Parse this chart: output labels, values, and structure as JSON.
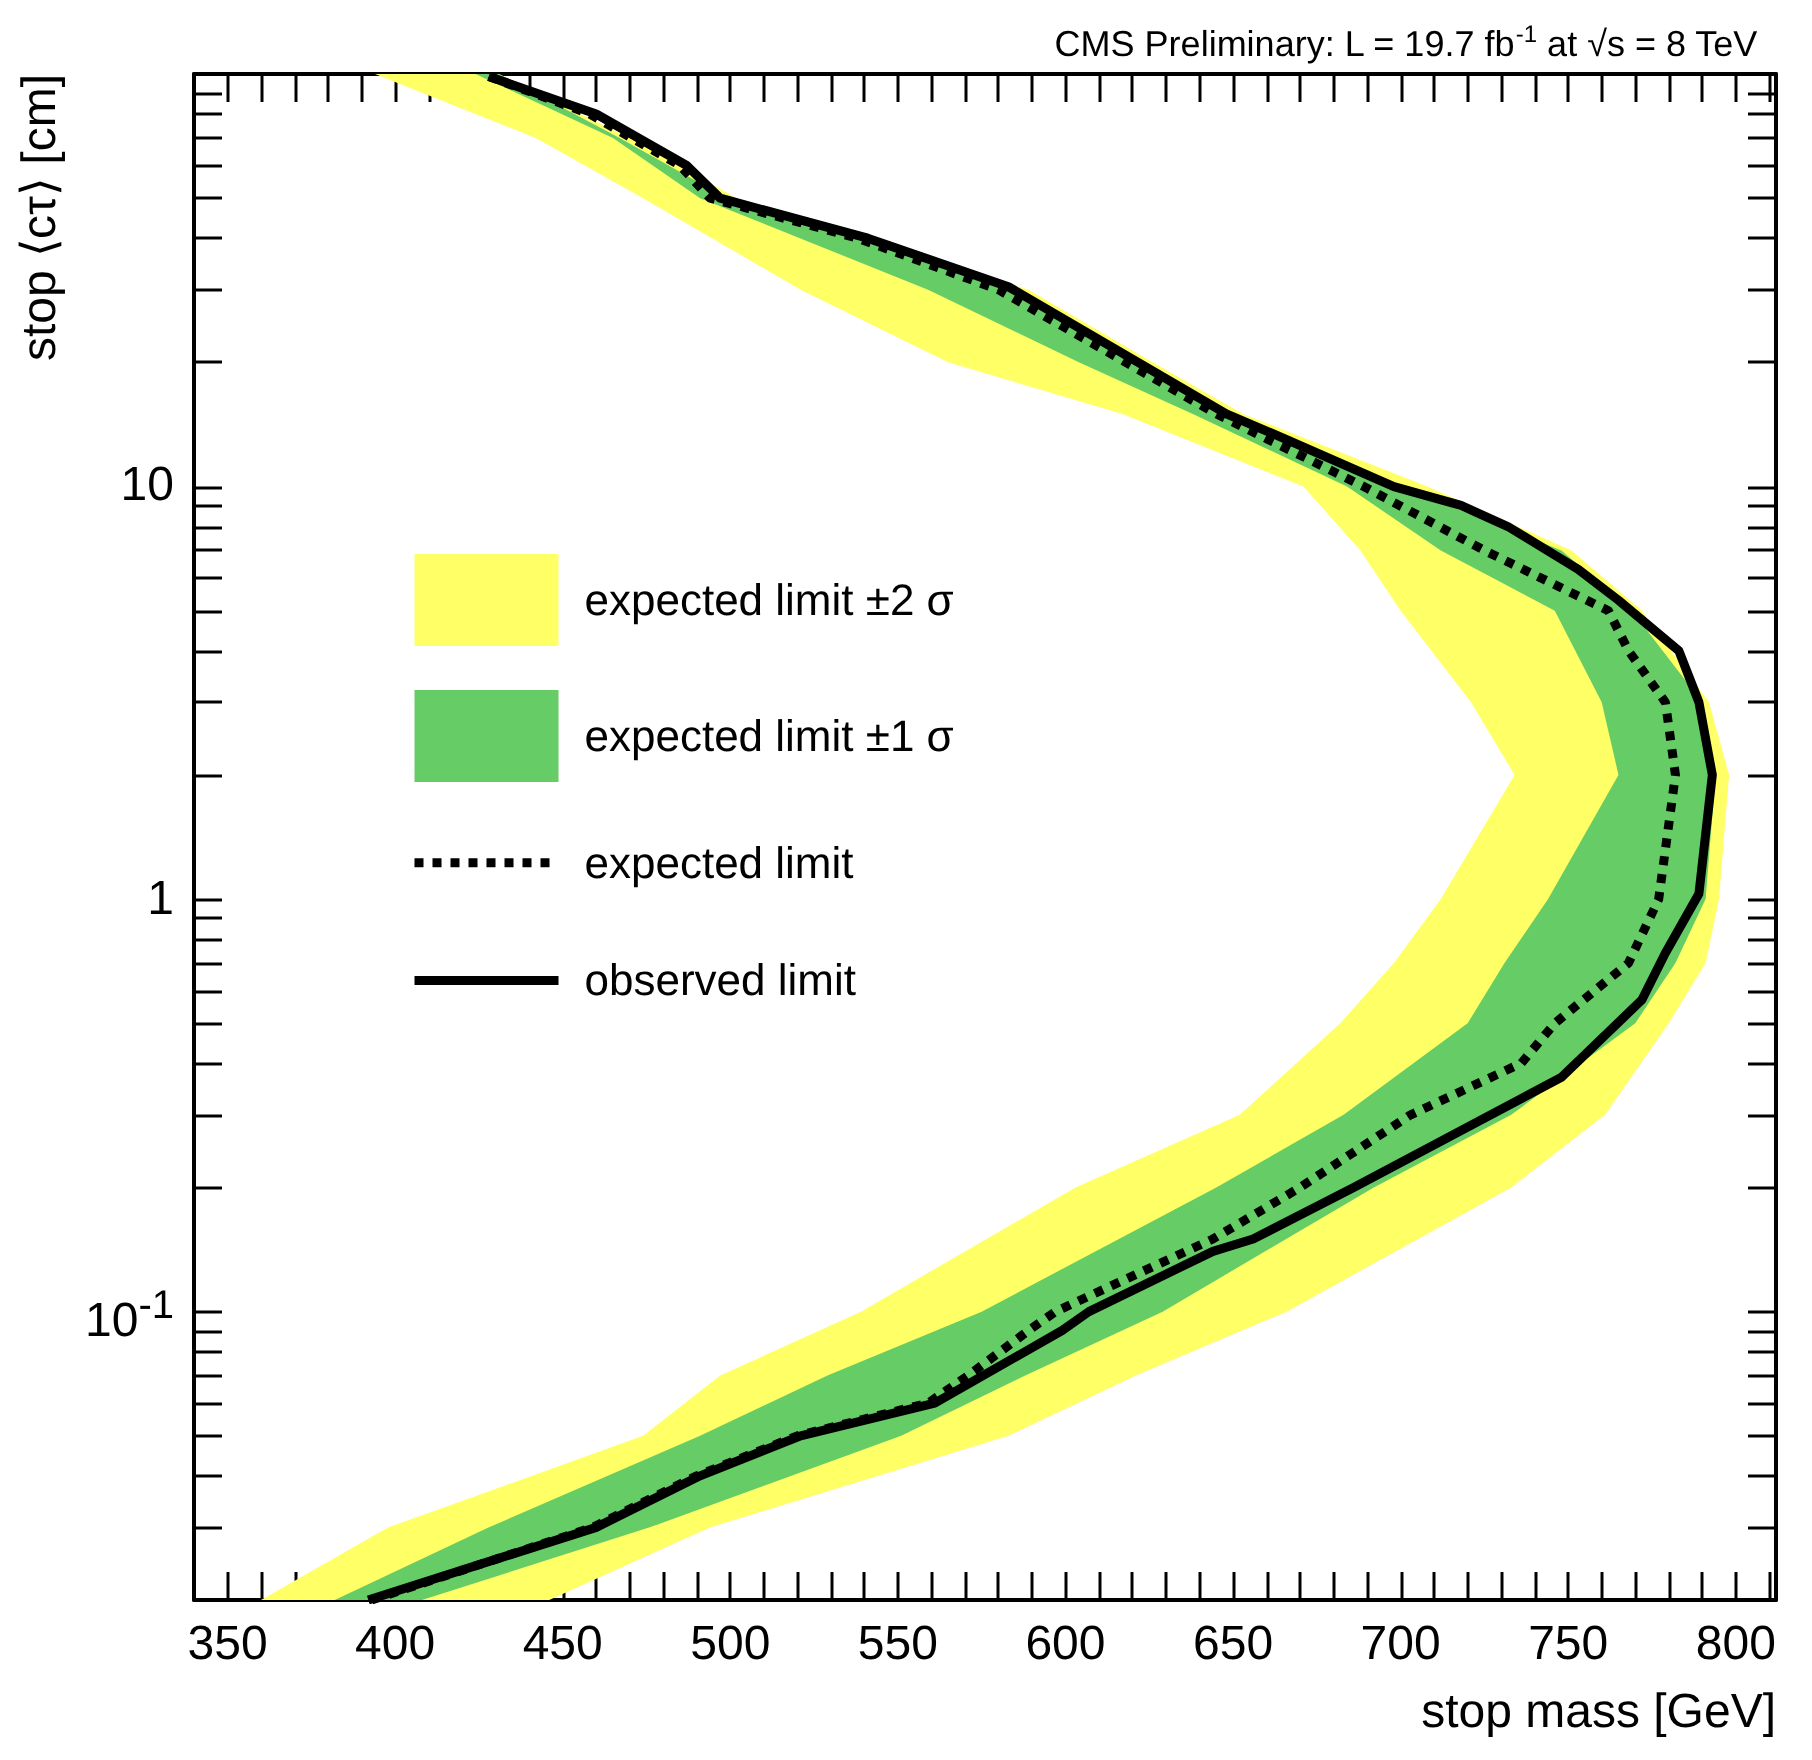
{
  "chart_data": {
    "type": "line",
    "title": "CMS Preliminary: L = 19.7 fb$^{-1}$ at √s = 8 TeV",
    "xlabel": "stop mass [GeV]",
    "ylabel": "stop ⟨cτ⟩ [cm]",
    "xlim": [
      340,
      812
    ],
    "ylim": [
      0.02,
      100
    ],
    "log": "y",
    "grid": false,
    "legend": "left",
    "xticks": [
      {
        "value": 340,
        "label": null
      },
      350,
      {
        "value": 360,
        "label": null
      },
      {
        "value": 370,
        "label": null
      },
      {
        "value": 380,
        "label": null
      },
      {
        "value": 390,
        "label": null
      },
      400,
      {
        "value": 410,
        "label": null
      },
      {
        "value": 420,
        "label": null
      },
      {
        "value": 430,
        "label": null
      },
      {
        "value": 440,
        "label": null
      },
      450,
      {
        "value": 460,
        "label": null
      },
      {
        "value": 470,
        "label": null
      },
      {
        "value": 480,
        "label": null
      },
      {
        "value": 490,
        "label": null
      },
      500,
      {
        "value": 510,
        "label": null
      },
      {
        "value": 520,
        "label": null
      },
      {
        "value": 530,
        "label": null
      },
      {
        "value": 540,
        "label": null
      },
      550,
      {
        "value": 560,
        "label": null
      },
      {
        "value": 570,
        "label": null
      },
      {
        "value": 580,
        "label": null
      },
      {
        "value": 590,
        "label": null
      },
      600,
      {
        "value": 610,
        "label": null
      },
      {
        "value": 620,
        "label": null
      },
      {
        "value": 630,
        "label": null
      },
      {
        "value": 640,
        "label": null
      },
      650,
      {
        "value": 660,
        "label": null
      },
      {
        "value": 670,
        "label": null
      },
      {
        "value": 680,
        "label": null
      },
      {
        "value": 690,
        "label": null
      },
      700,
      {
        "value": 710,
        "label": null
      },
      {
        "value": 720,
        "label": null
      },
      {
        "value": 730,
        "label": null
      },
      {
        "value": 740,
        "label": null
      },
      750,
      {
        "value": 760,
        "label": null
      },
      {
        "value": 770,
        "label": null
      },
      {
        "value": 780,
        "label": null
      },
      {
        "value": 790,
        "label": null
      },
      800,
      {
        "value": 810,
        "label": null
      }
    ],
    "yticks": [
      {
        "value": 0.02,
        "label": null
      },
      {
        "value": 0.03,
        "label": null
      },
      {
        "value": 0.04,
        "label": null
      },
      {
        "value": 0.05,
        "label": null
      },
      {
        "value": 0.06,
        "label": null
      },
      {
        "value": 0.07,
        "label": null
      },
      {
        "value": 0.08,
        "label": null
      },
      {
        "value": 0.09,
        "label": null
      },
      {
        "value": 0.1,
        "label": "10$^{-1}$"
      },
      {
        "value": 0.2,
        "label": null
      },
      {
        "value": 0.3,
        "label": null
      },
      {
        "value": 0.4,
        "label": null
      },
      {
        "value": 0.5,
        "label": null
      },
      {
        "value": 0.6,
        "label": null
      },
      {
        "value": 0.7,
        "label": null
      },
      {
        "value": 0.8,
        "label": null
      },
      {
        "value": 0.9,
        "label": null
      },
      1,
      {
        "value": 2,
        "label": null
      },
      {
        "value": 3,
        "label": null
      },
      {
        "value": 4,
        "label": null
      },
      {
        "value": 5,
        "label": null
      },
      {
        "value": 6,
        "label": null
      },
      {
        "value": 7,
        "label": null
      },
      {
        "value": 8,
        "label": null
      },
      {
        "value": 9,
        "label": null
      },
      10,
      {
        "value": 20,
        "label": null
      },
      {
        "value": 30,
        "label": null
      },
      {
        "value": 40,
        "label": null
      },
      {
        "value": 50,
        "label": null
      },
      {
        "value": 60,
        "label": null
      },
      {
        "value": 70,
        "label": null
      },
      {
        "value": 80,
        "label": null
      },
      {
        "value": 90,
        "label": null
      },
      {
        "value": 100,
        "label": null
      }
    ],
    "series": [
      {
        "name": "expected limit ±2 σ",
        "type": "area",
        "color": "#ffff66",
        "x": [
          446,
          494,
          583,
          621,
          666,
          733,
          761,
          780,
          791,
          795,
          798,
          792,
          772,
          751,
          708,
          653,
          626,
          589,
          502,
          470,
          431,
          394,
          442,
          474,
          521,
          565,
          617,
          671,
          688,
          700,
          721,
          734,
          712,
          698,
          682,
          652,
          603,
          539,
          497,
          474,
          398,
          360
        ],
        "values": [
          0.02,
          0.03,
          0.05,
          0.07,
          0.1,
          0.2,
          0.3,
          0.5,
          0.7,
          1,
          2,
          3,
          5,
          7,
          10,
          15,
          20,
          30,
          50,
          70,
          100,
          100,
          70,
          50,
          30,
          20,
          15,
          10,
          7,
          5,
          3,
          2,
          1,
          0.7,
          0.5,
          0.3,
          0.2,
          0.1,
          0.07,
          0.05,
          0.03,
          0.02
        ]
      },
      {
        "name": "expected limit ±1 σ",
        "type": "area",
        "color": "#66cc66",
        "x": [
          408,
          476,
          551,
          588,
          629,
          692,
          733,
          770,
          782,
          791,
          794,
          790,
          769,
          748,
          700,
          650,
          624,
          586,
          499,
          467,
          431,
          424,
          465,
          491,
          559,
          604,
          638,
          684,
          712,
          746,
          760,
          765,
          744,
          731,
          720,
          683,
          645,
          575,
          529,
          491,
          428,
          382
        ],
        "values": [
          0.02,
          0.03,
          0.05,
          0.07,
          0.1,
          0.2,
          0.3,
          0.5,
          0.7,
          1,
          2,
          3,
          5,
          7,
          10,
          15,
          20,
          30,
          50,
          70,
          100,
          100,
          70,
          50,
          30,
          20,
          15,
          10,
          7,
          5,
          3,
          2,
          1,
          0.7,
          0.5,
          0.3,
          0.2,
          0.1,
          0.07,
          0.05,
          0.03,
          0.02
        ]
      },
      {
        "name": "expected limit",
        "line_style": "dotted",
        "color": "#000000",
        "x": [
          393,
          459,
          490,
          520,
          559,
          571,
          589,
          597,
          644,
          670,
          703,
          736,
          746,
          768,
          777,
          782,
          779,
          768,
          762,
          725,
          689,
          645,
          580,
          538,
          494,
          485,
          458,
          426
        ],
        "values": [
          0.02,
          0.03,
          0.04,
          0.05,
          0.06,
          0.07,
          0.09,
          0.1,
          0.15,
          0.2,
          0.3,
          0.4,
          0.5,
          0.7,
          1,
          2,
          3,
          4,
          5,
          7,
          10,
          15,
          30,
          40,
          50,
          60,
          80,
          100
        ]
      },
      {
        "name": "observed limit",
        "line_style": "solid",
        "color": "#000000",
        "x": [
          392,
          460,
          491,
          521,
          561,
          599,
          607,
          644,
          656,
          686,
          748,
          772,
          779,
          789,
          793,
          789,
          783,
          765,
          753,
          732,
          718,
          698,
          666,
          648,
          583,
          541,
          497,
          487,
          460,
          428
        ],
        "values": [
          0.02,
          0.03,
          0.04,
          0.05,
          0.06,
          0.09,
          0.1,
          0.14,
          0.15,
          0.2,
          0.37,
          0.57,
          0.74,
          1.03,
          2,
          3,
          4,
          5.3,
          6.3,
          8,
          9,
          10,
          13,
          15,
          30.5,
          40,
          50,
          60,
          80,
          98.6
        ]
      }
    ]
  }
}
